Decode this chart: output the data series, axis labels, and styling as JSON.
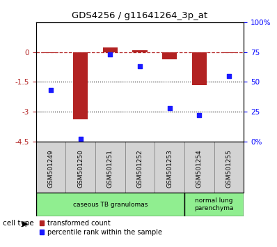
{
  "title": "GDS4256 / g11641264_3p_at",
  "samples": [
    "GSM501249",
    "GSM501250",
    "GSM501251",
    "GSM501252",
    "GSM501253",
    "GSM501254",
    "GSM501255"
  ],
  "transformed_count": [
    -0.05,
    -3.4,
    0.22,
    0.1,
    -0.38,
    -1.65,
    -0.05
  ],
  "percentile_rank": [
    43,
    2,
    73,
    63,
    28,
    22,
    55
  ],
  "ylim_left": [
    -4.5,
    1.5
  ],
  "ylim_right": [
    0,
    100
  ],
  "yticks_left": [
    0,
    -1.5,
    -3.0,
    -4.5
  ],
  "yticks_left_labels": [
    "0",
    "-1.5",
    "-3",
    "-4.5"
  ],
  "yticks_right": [
    0,
    25,
    50,
    75,
    100
  ],
  "yticks_right_labels": [
    "0%",
    "25",
    "50",
    "75",
    "100%"
  ],
  "dotted_lines": [
    -1.5,
    -3.0
  ],
  "bar_color": "#b22222",
  "scatter_color": "#1a1aff",
  "box_color": "#d3d3d3",
  "cell_type_colors": [
    "#90ee90",
    "#90ee90"
  ],
  "cell_type_labels": [
    "caseous TB granulomas",
    "normal lung\nparenchyma"
  ],
  "cell_type_ranges": [
    [
      0,
      4
    ],
    [
      5,
      6
    ]
  ],
  "cell_type_label": "cell type",
  "legend_labels": [
    "transformed count",
    "percentile rank within the sample"
  ],
  "legend_colors": [
    "#b22222",
    "#1a1aff"
  ],
  "background_color": "#ffffff"
}
